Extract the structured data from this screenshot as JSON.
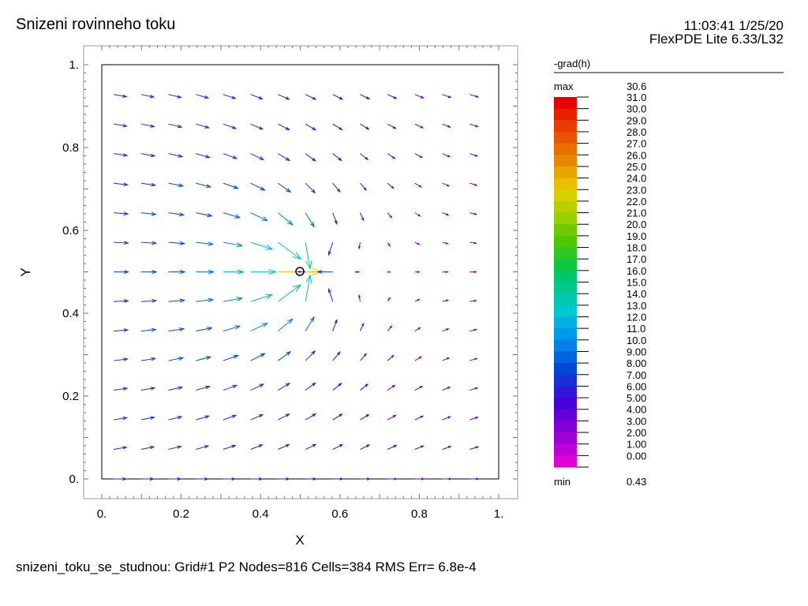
{
  "header": {
    "title": "Snizeni rovinneho toku",
    "timestamp": "11:03:41 1/25/20",
    "software": "FlexPDE Lite 6.33/L32"
  },
  "footer": {
    "status": "snizeni_toku_se_studnou:  Grid#1  P2  Nodes=816 Cells=384 RMS Err= 6.8e-4"
  },
  "legend": {
    "title": "-grad(h)",
    "max_label": "max",
    "max_value": "30.6",
    "min_label": "min",
    "min_value": "0.43",
    "levels": [
      "31.0",
      "30.0",
      "29.0",
      "28.0",
      "27.0",
      "26.0",
      "25.0",
      "24.0",
      "23.0",
      "22.0",
      "21.0",
      "20.0",
      "19.0",
      "18.0",
      "17.0",
      "16.0",
      "15.0",
      "14.0",
      "13.0",
      "12.0",
      "11.0",
      "10.0",
      "9.00",
      "8.00",
      "7.00",
      "6.00",
      "5.00",
      "4.00",
      "3.00",
      "2.00",
      "1.00",
      "0.00"
    ],
    "colors": [
      "#e80000",
      "#e82000",
      "#e83c00",
      "#e85400",
      "#e87000",
      "#e88800",
      "#e8a400",
      "#e8c000",
      "#d8d000",
      "#b8d000",
      "#98d000",
      "#70c800",
      "#50c800",
      "#30c820",
      "#10c840",
      "#00c868",
      "#00c890",
      "#00c8b0",
      "#00c8d0",
      "#00b0e0",
      "#0098e8",
      "#0080e8",
      "#0064e0",
      "#0048d8",
      "#1830d8",
      "#3018d8",
      "#4800d8",
      "#6400d8",
      "#8000d8",
      "#a000d8",
      "#c000d8",
      "#e000d8"
    ]
  },
  "chart_data": {
    "type": "vector",
    "title": "Snizeni rovinneho toku",
    "xlabel": "X",
    "ylabel": "Y",
    "xlim": [
      0,
      1
    ],
    "ylim": [
      0,
      1
    ],
    "xticks": [
      "0.",
      "0.2",
      "0.4",
      "0.6",
      "0.8",
      "1."
    ],
    "yticks": [
      "0.",
      "0.2",
      "0.4",
      "0.6",
      "0.8",
      "1."
    ],
    "field": "-grad(h)",
    "well": {
      "x": 0.5,
      "y": 0.5
    },
    "vmax": 30.6,
    "vmin": 0.43
  }
}
